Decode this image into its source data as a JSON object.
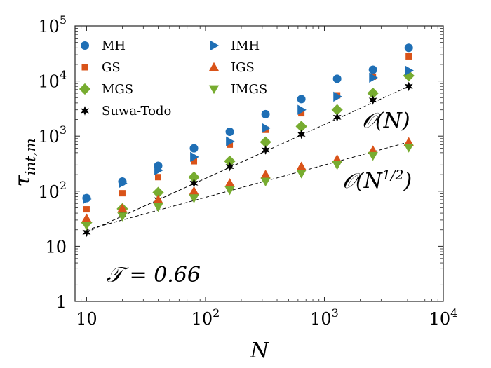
{
  "chart_data": {
    "type": "scatter",
    "xscale": "log",
    "yscale": "log",
    "xlim": [
      8,
      10000
    ],
    "ylim": [
      1,
      100000
    ],
    "xlabel": "N",
    "ylabel": "τ",
    "ylabel_sub": "int,m",
    "x_ticks": [
      {
        "value": 10,
        "base": "10",
        "exp": ""
      },
      {
        "value": 100,
        "base": "10",
        "exp": "2"
      },
      {
        "value": 1000,
        "base": "10",
        "exp": "3"
      },
      {
        "value": 10000,
        "base": "10",
        "exp": "4"
      }
    ],
    "y_ticks": [
      {
        "value": 1,
        "base": "1",
        "exp": ""
      },
      {
        "value": 10,
        "base": "10",
        "exp": ""
      },
      {
        "value": 100,
        "base": "10",
        "exp": "2"
      },
      {
        "value": 1000,
        "base": "10",
        "exp": "3"
      },
      {
        "value": 10000,
        "base": "10",
        "exp": "4"
      },
      {
        "value": 100000,
        "base": "10",
        "exp": "5"
      }
    ],
    "x": [
      10,
      20,
      40,
      80,
      160,
      320,
      640,
      1280,
      2560,
      5120
    ],
    "series": [
      {
        "name": "MH",
        "marker": "circle",
        "color": "#1f6fb5",
        "values": [
          75,
          150,
          290,
          600,
          1200,
          2500,
          4700,
          11000,
          16000,
          40000
        ]
      },
      {
        "name": "GS",
        "marker": "square",
        "color": "#d95319",
        "values": [
          47,
          92,
          180,
          350,
          700,
          1300,
          2600,
          5500,
          12000,
          28000
        ]
      },
      {
        "name": "MGS",
        "marker": "diamond",
        "color": "#77ac30",
        "values": [
          27,
          48,
          95,
          180,
          350,
          780,
          1500,
          3000,
          6000,
          12500
        ]
      },
      {
        "name": "Suwa-Todo",
        "marker": "hexstar",
        "color": "#000000",
        "values": [
          18,
          38,
          70,
          140,
          280,
          560,
          1080,
          2200,
          4500,
          8000
        ]
      },
      {
        "name": "IMH",
        "marker": "triangle-right",
        "color": "#1f6fb5",
        "values": [
          72,
          140,
          240,
          420,
          800,
          1400,
          3000,
          5200,
          11500,
          15500
        ]
      },
      {
        "name": "IGS",
        "marker": "triangle-up",
        "color": "#d95319",
        "values": [
          32,
          48,
          70,
          100,
          140,
          200,
          280,
          380,
          550,
          780
        ]
      },
      {
        "name": "IMGS",
        "marker": "triangle-down",
        "color": "#77ac30",
        "values": [
          24,
          35,
          52,
          75,
          105,
          150,
          210,
          300,
          440,
          620
        ]
      }
    ],
    "fit_lines": [
      {
        "label": "O(N)",
        "from": [
          10,
          18
        ],
        "to": [
          5120,
          8000
        ],
        "style": "dashed"
      },
      {
        "label": "O(N^1/2)",
        "from": [
          10,
          20
        ],
        "to": [
          5120,
          780
        ],
        "style": "dashed"
      }
    ],
    "annotations": {
      "fit_linear_prefix": "𝒪(N",
      "fit_linear_suffix": ")",
      "fit_sqrt_prefix": "𝒪(N",
      "fit_sqrt_exp": "1/2",
      "fit_sqrt_suffix": ")",
      "param_label": "𝒯 = 0.66"
    },
    "legend_position": "top-left"
  }
}
